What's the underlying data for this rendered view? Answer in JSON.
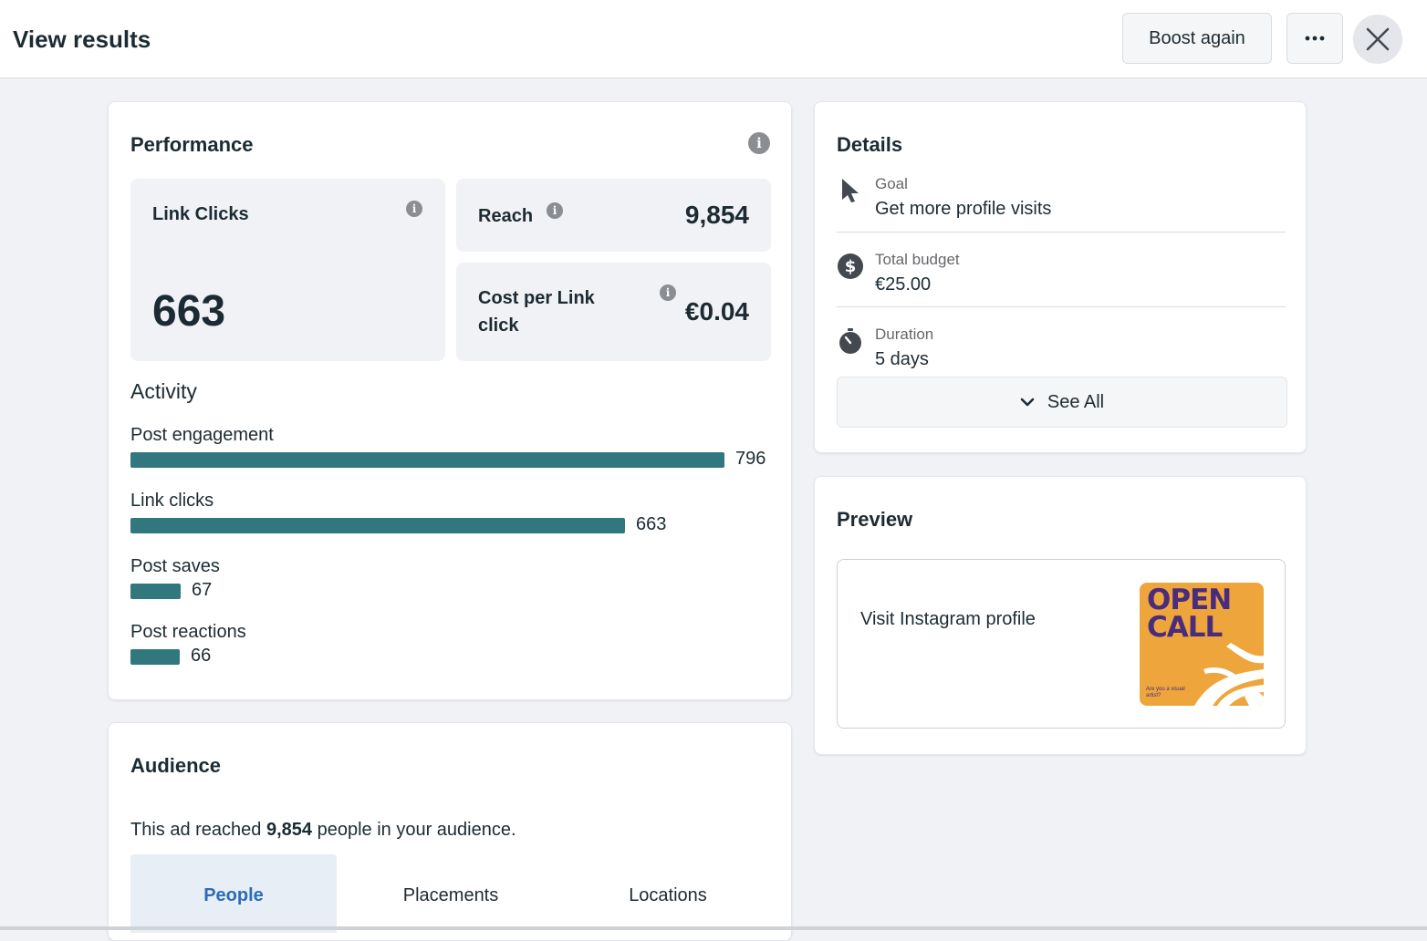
{
  "header": {
    "title": "View results",
    "boost_again_label": "Boost again"
  },
  "performance": {
    "title": "Performance",
    "link_clicks": {
      "label": "Link Clicks",
      "value": "663"
    },
    "reach": {
      "label": "Reach",
      "value": "9,854"
    },
    "cost_per_link_click": {
      "label": "Cost per Link click",
      "value": "€0.04"
    }
  },
  "activity": {
    "title": "Activity",
    "items": [
      {
        "label": "Post engagement",
        "value": "796",
        "number": 796
      },
      {
        "label": "Link clicks",
        "value": "663",
        "number": 663
      },
      {
        "label": "Post saves",
        "value": "67",
        "number": 67
      },
      {
        "label": "Post reactions",
        "value": "66",
        "number": 66
      }
    ]
  },
  "details": {
    "title": "Details",
    "goal": {
      "label": "Goal",
      "value": "Get more profile visits"
    },
    "budget": {
      "label": "Total budget",
      "value": "€25.00"
    },
    "duration": {
      "label": "Duration",
      "value": "5 days"
    },
    "see_all_label": "See All"
  },
  "preview": {
    "title": "Preview",
    "cta_text": "Visit Instagram profile",
    "thumb_headline": "OPEN CALL",
    "thumb_subtext": "Are you a visual artist?"
  },
  "audience": {
    "title": "Audience",
    "reached_prefix": "This ad reached ",
    "reached_count": "9,854",
    "reached_suffix": " people in your audience.",
    "tabs": [
      "People",
      "Placements",
      "Locations"
    ]
  },
  "colors": {
    "bar": "#31777e",
    "active_tab_bg": "#e7eef6",
    "active_tab_text": "#2d6cb5",
    "page_bg": "#f0f2f5"
  }
}
